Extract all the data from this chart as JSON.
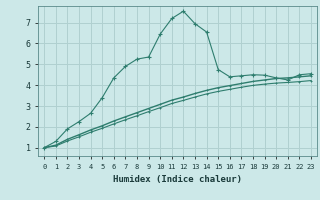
{
  "xlabel": "Humidex (Indice chaleur)",
  "bg_color": "#cce8e8",
  "grid_color": "#b0d0d0",
  "line_color": "#2e7d6e",
  "xlim": [
    -0.5,
    23.5
  ],
  "ylim": [
    0.6,
    7.8
  ],
  "xticks": [
    0,
    1,
    2,
    3,
    4,
    5,
    6,
    7,
    8,
    9,
    10,
    11,
    12,
    13,
    14,
    15,
    16,
    17,
    18,
    19,
    20,
    21,
    22,
    23
  ],
  "yticks": [
    1,
    2,
    3,
    4,
    5,
    6,
    7
  ],
  "line1_x": [
    0,
    1,
    2,
    3,
    4,
    5,
    6,
    7,
    8,
    9,
    10,
    11,
    12,
    13,
    14,
    15,
    16,
    17,
    18,
    19,
    20,
    21,
    22,
    23
  ],
  "line1_y": [
    1.0,
    1.3,
    1.9,
    2.25,
    2.65,
    3.4,
    4.35,
    4.9,
    5.25,
    5.35,
    6.45,
    7.2,
    7.55,
    6.95,
    6.55,
    4.75,
    4.4,
    4.45,
    4.5,
    4.48,
    4.35,
    4.25,
    4.5,
    4.55
  ],
  "line2_x": [
    0,
    1,
    2,
    3,
    4,
    5,
    6,
    7,
    8,
    9,
    10,
    11,
    12,
    13,
    14,
    15,
    16,
    17,
    18,
    19,
    20,
    21,
    22,
    23
  ],
  "line2_y": [
    1.0,
    1.12,
    1.4,
    1.62,
    1.85,
    2.05,
    2.28,
    2.48,
    2.68,
    2.88,
    3.08,
    3.28,
    3.43,
    3.6,
    3.75,
    3.88,
    3.98,
    4.08,
    4.18,
    4.25,
    4.32,
    4.35,
    4.4,
    4.45
  ],
  "line3_x": [
    0,
    1,
    2,
    3,
    4,
    5,
    6,
    7,
    8,
    9,
    10,
    11,
    12,
    13,
    14,
    15,
    16,
    17,
    18,
    19,
    20,
    21,
    22,
    23
  ],
  "line3_y": [
    1.0,
    1.08,
    1.32,
    1.52,
    1.74,
    1.93,
    2.14,
    2.34,
    2.53,
    2.73,
    2.92,
    3.12,
    3.27,
    3.43,
    3.58,
    3.7,
    3.8,
    3.9,
    3.99,
    4.05,
    4.1,
    4.13,
    4.17,
    4.22
  ]
}
